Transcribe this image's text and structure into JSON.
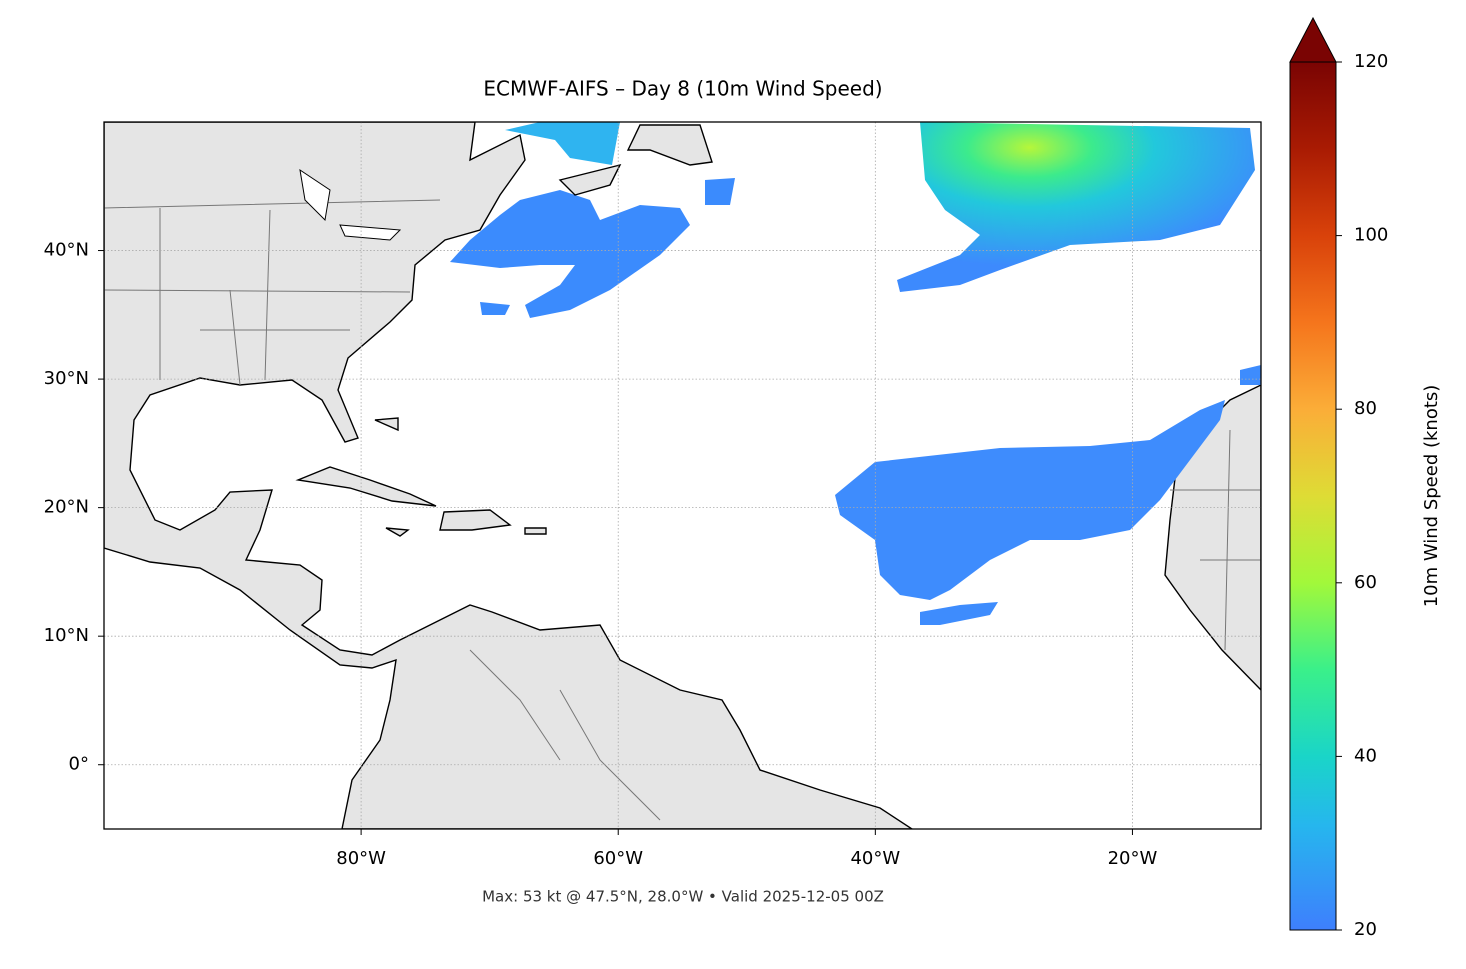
{
  "map": {
    "title": "ECMWF-AIFS – Day 8 (10m Wind Speed)",
    "footer": "Max: 53 kt @ 47.5°N, 28.0°W • Valid 2025-12-05 00Z",
    "lonlim": [
      -100,
      -10
    ],
    "latlim": [
      -5,
      50
    ],
    "lon_ticks": [
      {
        "value": -80,
        "label": "80°W"
      },
      {
        "value": -60,
        "label": "60°W"
      },
      {
        "value": -40,
        "label": "40°W"
      },
      {
        "value": -20,
        "label": "20°W"
      }
    ],
    "lat_ticks": [
      {
        "value": 0,
        "label": "0°"
      },
      {
        "value": 10,
        "label": "10°N"
      },
      {
        "value": 20,
        "label": "20°N"
      },
      {
        "value": 30,
        "label": "30°N"
      },
      {
        "value": 40,
        "label": "40°N"
      }
    ],
    "colorbar": {
      "label": "10m Wind Speed (knots)",
      "range": [
        20,
        120
      ],
      "ticks": [
        20,
        40,
        60,
        80,
        100,
        120
      ]
    }
  }
}
